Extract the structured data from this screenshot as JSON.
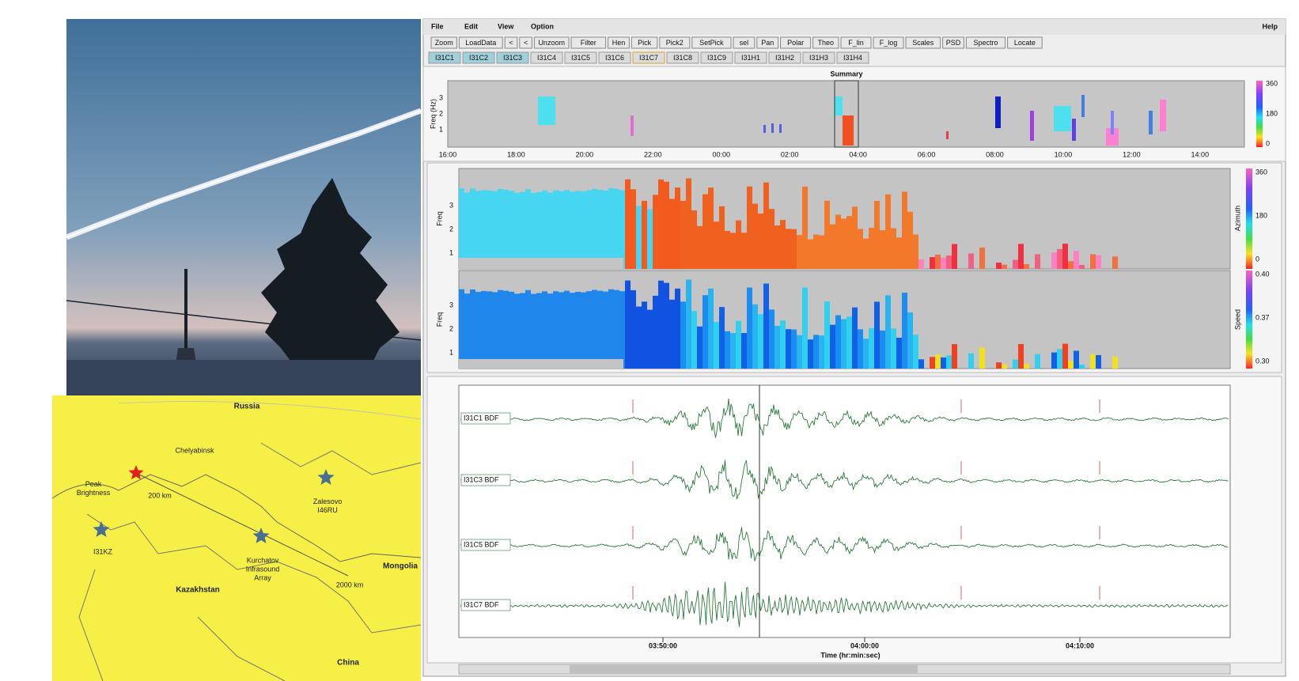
{
  "map": {
    "labels": [
      "Russia",
      "Chelyabinsk",
      "Peak\nBrightness",
      "200 km",
      "I31KZ",
      "Zalesovo\nI46RU",
      "Kurchatov\nInfrasound\nArray",
      "Kazakhstan",
      "Mongolia",
      "2000 km",
      "China"
    ]
  },
  "app": {
    "menu": [
      "File",
      "Edit",
      "View",
      "Option"
    ],
    "help": "Help",
    "toolbar": [
      "Zoom",
      "LoadData",
      "<",
      "<",
      "Unzoom",
      "Filter",
      "Hen",
      "Pick",
      "Pick2",
      "SetPick",
      "sel",
      "Pan",
      "Polar",
      "Theo",
      "F_lin",
      "F_log",
      "Scales",
      "PSD",
      "Spectro",
      "Locate"
    ],
    "stations": [
      "I31C1",
      "I31C2",
      "I31C3",
      "I31C4",
      "I31C5",
      "I31C6",
      "I31C7",
      "I31C8",
      "I31C9",
      "I31H1",
      "I31H2",
      "I31H3",
      "I31H4"
    ],
    "summary": {
      "title": "Summary",
      "ylabel": "Freq (Hz)",
      "yticks": [
        "1",
        "2",
        "3"
      ],
      "xticks": [
        "16:00",
        "18:00",
        "20:00",
        "22:00",
        "00:00",
        "02:00",
        "04:00",
        "06:00",
        "08:00",
        "10:00",
        "12:00",
        "14:00"
      ],
      "colorbar": [
        "360",
        "180",
        "0"
      ]
    },
    "pmcc": {
      "ylabel": "Freq",
      "yticks": [
        "1",
        "2",
        "3"
      ],
      "azimuth_label": "Azimuth",
      "azimuth_ticks": [
        "360",
        "180",
        "0"
      ],
      "speed_label": "Speed",
      "speed_ticks": [
        "0.40",
        "0.37",
        "0.30"
      ]
    },
    "waveforms": {
      "channels": [
        "I31C1 BDF",
        "I31C3 BDF",
        "I31C5 BDF",
        "I31C7 BDF"
      ],
      "xticks": [
        "03:50:00",
        "04:00:00",
        "04:10:00"
      ],
      "xlabel": "Time (hr:min:sec)"
    }
  }
}
